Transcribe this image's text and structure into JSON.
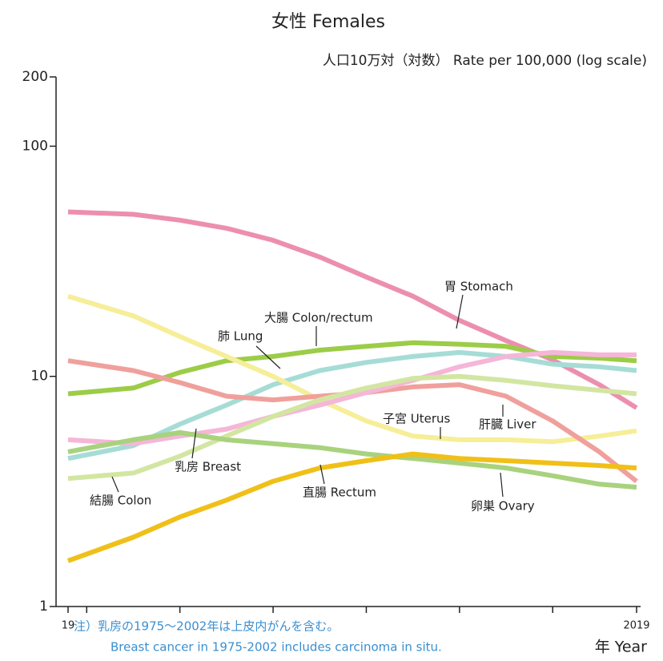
{
  "chart_data": {
    "type": "line",
    "title": "女性 Females",
    "y_label": "人口10万対（対数） Rate per 100,000 (log scale)",
    "x_label": "年 Year",
    "note": [
      "注）乳房の1975～2002年は上皮内がんを含む。",
      "Breast cancer in 1975-2002 includes carcinoma in situ."
    ],
    "log_y": true,
    "x": [
      1958,
      1965,
      1970,
      1975,
      1980,
      1985,
      1990,
      1995,
      2000,
      2005,
      2010,
      2015,
      2019
    ],
    "xlim": [
      1958,
      2019
    ],
    "xticks": [
      {
        "value": 1958,
        "label": "19"
      },
      {
        "value": 1960,
        "label": null
      },
      {
        "value": 1970,
        "label": null
      },
      {
        "value": 1980,
        "label": null
      },
      {
        "value": 1990,
        "label": null
      },
      {
        "value": 2000,
        "label": null
      },
      {
        "value": 2010,
        "label": null
      },
      2019
    ],
    "ylim": [
      1,
      200
    ],
    "yticks": [
      1,
      10,
      100,
      200
    ],
    "series": [
      {
        "name": "胃 Stomach",
        "color": "#ec8fae",
        "values": [
          51.8,
          50.6,
          47.7,
          44,
          39,
          33,
          27,
          22.3,
          17.5,
          14.3,
          11.8,
          9.2,
          7.3
        ]
      },
      {
        "name": "大腸 Colon/rectum",
        "color": "#9ccc48",
        "values": [
          8.4,
          8.9,
          10.4,
          11.7,
          12.2,
          13,
          13.5,
          14,
          13.8,
          13.5,
          12.2,
          12,
          11.7
        ]
      },
      {
        "name": "肺 Lung",
        "color": "#a6dcd6",
        "values": [
          4.4,
          5.0,
          6.2,
          7.5,
          9.2,
          10.6,
          11.5,
          12.2,
          12.7,
          12.2,
          11.3,
          11,
          10.6
        ]
      },
      {
        "name": "子宮 Uterus",
        "color": "#f6ee98",
        "values": [
          22.3,
          18.3,
          14.9,
          12.2,
          10,
          7.9,
          6.4,
          5.5,
          5.3,
          5.3,
          5.2,
          5.5,
          5.8
        ]
      },
      {
        "name": "肝臓 Liver",
        "color": "#f0a09c",
        "values": [
          11.7,
          10.6,
          9.4,
          8.2,
          7.9,
          8.2,
          8.5,
          9.0,
          9.2,
          8.2,
          6.4,
          4.7,
          3.5
        ]
      },
      {
        "name": "乳房 Breast",
        "color": "#f5b6d8",
        "values": [
          5.3,
          5.1,
          5.5,
          5.9,
          6.7,
          7.5,
          8.5,
          9.6,
          11,
          12.2,
          12.7,
          12.4,
          12.4
        ]
      },
      {
        "name": "結腸 Colon",
        "color": "#d2e6a2",
        "values": [
          3.6,
          3.8,
          4.5,
          5.5,
          6.7,
          7.9,
          8.9,
          9.8,
          10,
          9.6,
          9.1,
          8.7,
          8.4
        ]
      },
      {
        "name": "直腸 Rectum",
        "color": "#a9d27e",
        "values": [
          4.7,
          5.3,
          5.7,
          5.3,
          5.1,
          4.9,
          4.6,
          4.4,
          4.2,
          4.0,
          3.7,
          3.4,
          3.3
        ]
      },
      {
        "name": "卵巣 Ovary",
        "color": "#f0c018",
        "values": [
          1.58,
          2.0,
          2.45,
          2.9,
          3.5,
          4.0,
          4.3,
          4.6,
          4.4,
          4.3,
          4.2,
          4.1,
          4.0
        ]
      }
    ]
  }
}
